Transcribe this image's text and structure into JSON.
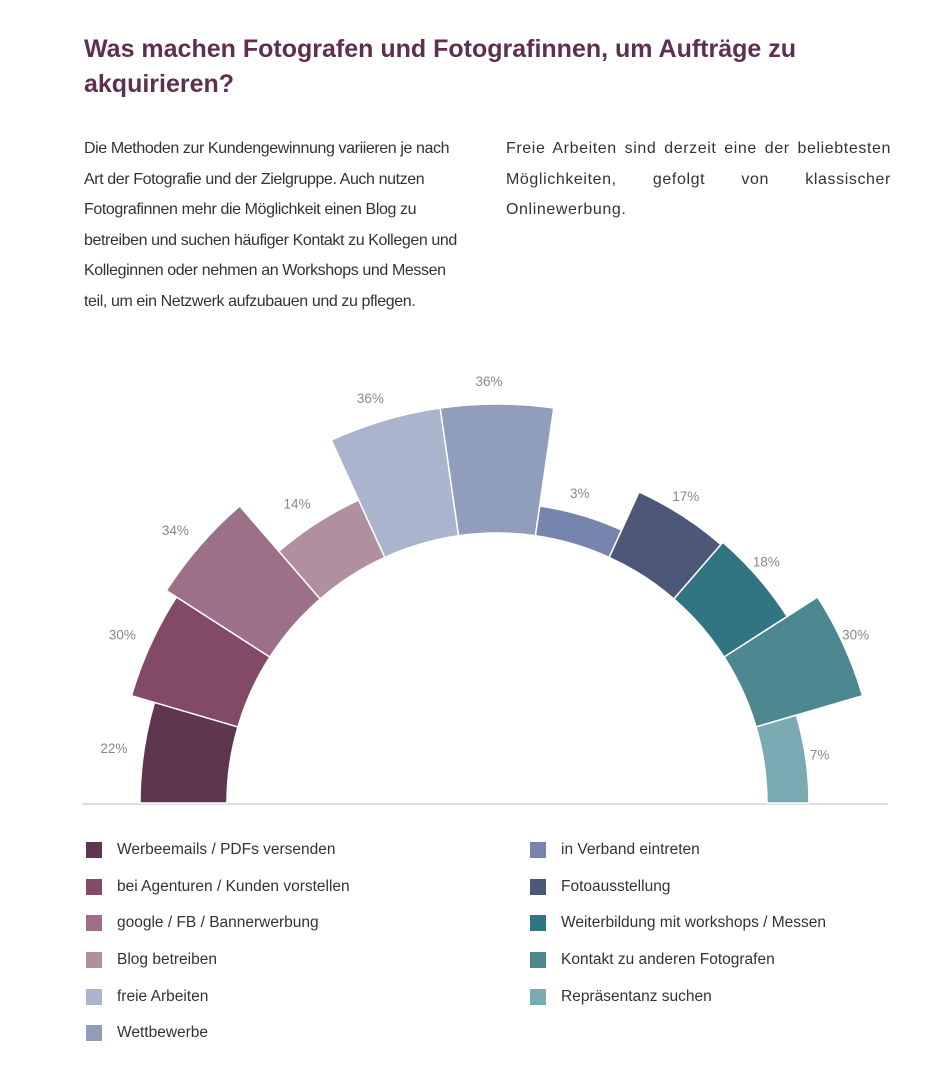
{
  "title": "Was machen Fotografen und Fotografinnen, um Aufträge zu akquirieren?",
  "paragraph_left": "Die Methoden zur Kundengewinnung variieren je nach Art der Fotografie und der Zielgruppe. Auch nutzen Fotografinnen mehr die Möglichkeit einen Blog zu betreiben und suchen häufiger Kontakt zu Kollegen und Kolleginnen oder nehmen an Workshops und Messen teil, um ein Netzwerk aufzubauen und zu pflegen.",
  "paragraph_right": "Freie Arbeiten sind derzeit eine der beliebtesten Möglichkeiten, gefolgt von klassischer Onlinewerbung.",
  "chart_data": {
    "type": "radial-bar (semicircle)",
    "unit": "%",
    "legend_placement": "bottom",
    "categories": [
      "Werbeemails / PDFs versenden",
      "bei Agenturen / Kunden vorstellen",
      "google / FB / Bannerwerbung",
      "Blog betreiben",
      "freie Arbeiten",
      "Wettbewerbe",
      "in Verband eintreten",
      "Fotoausstellung",
      "Weiterbildung mit workshops / Messen",
      "Kontakt zu anderen Fotografen",
      "Repräsentanz suchen"
    ],
    "values": [
      22,
      30,
      34,
      14,
      36,
      36,
      3,
      17,
      18,
      30,
      7
    ],
    "colors": [
      "#5e3650",
      "#834a68",
      "#9b7088",
      "#b08fa0",
      "#aab4cd",
      "#909dbb",
      "#7585ad",
      "#4d5878",
      "#317482",
      "#4d8891",
      "#7aaab2"
    ]
  }
}
